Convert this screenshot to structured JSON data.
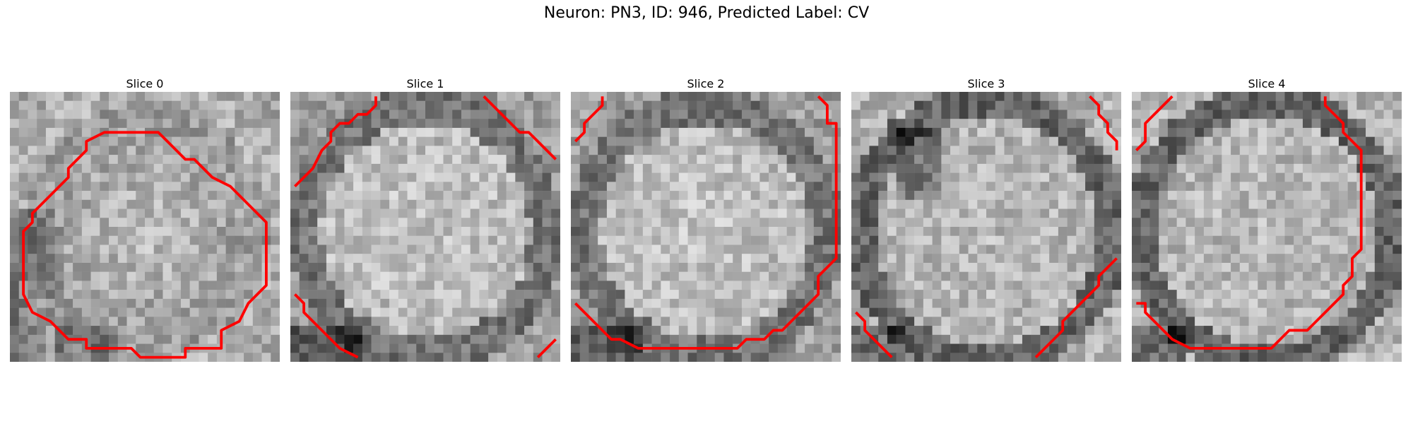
{
  "figure": {
    "suptitle": "Neuron: PN3, ID: 946, Predicted Label: CV"
  },
  "contour_color": "#ff0000",
  "grid_size": 30,
  "slices": [
    {
      "title": "Slice 0",
      "tone": "rim-dark-left-bottom",
      "contours": [
        [
          [
            13,
            4
          ],
          [
            16,
            4
          ],
          [
            17,
            5
          ],
          [
            19,
            7
          ],
          [
            20,
            7
          ],
          [
            22,
            9
          ],
          [
            24,
            10
          ],
          [
            26,
            12
          ],
          [
            28,
            14
          ],
          [
            28,
            21
          ],
          [
            26,
            23
          ],
          [
            25,
            25
          ],
          [
            23,
            26
          ],
          [
            23,
            28
          ],
          [
            19,
            28
          ],
          [
            19,
            28
          ],
          [
            19,
            29
          ],
          [
            17,
            29
          ],
          [
            14,
            29
          ],
          [
            13,
            28
          ],
          [
            10,
            28
          ],
          [
            8,
            28
          ],
          [
            8,
            27
          ],
          [
            6,
            27
          ],
          [
            5,
            26
          ],
          [
            4,
            25
          ],
          [
            2,
            24
          ],
          [
            1,
            22
          ],
          [
            1,
            15
          ],
          [
            2,
            14
          ],
          [
            2,
            13
          ],
          [
            4,
            11
          ],
          [
            6,
            9
          ],
          [
            6,
            8
          ],
          [
            8,
            6
          ],
          [
            8,
            5
          ],
          [
            10,
            4
          ],
          [
            13,
            4
          ]
        ]
      ]
    },
    {
      "title": "Slice 1",
      "tone": "bright-center",
      "contours": [
        [
          [
            0,
            10
          ],
          [
            1,
            9
          ],
          [
            2,
            8
          ],
          [
            3,
            6
          ],
          [
            4,
            5
          ],
          [
            4,
            4
          ],
          [
            5,
            3
          ],
          [
            6,
            3
          ],
          [
            7,
            2
          ],
          [
            8,
            2
          ],
          [
            9,
            1
          ],
          [
            9,
            0
          ]
        ],
        [
          [
            21,
            0
          ],
          [
            22,
            1
          ],
          [
            24,
            3
          ],
          [
            25,
            4
          ],
          [
            26,
            4
          ],
          [
            27,
            5
          ],
          [
            28,
            6
          ],
          [
            29,
            7
          ]
        ],
        [
          [
            0,
            22
          ],
          [
            1,
            23
          ],
          [
            1,
            24
          ],
          [
            3,
            26
          ],
          [
            4,
            27
          ],
          [
            5,
            28
          ],
          [
            7,
            29
          ]
        ],
        [
          [
            27,
            29
          ],
          [
            29,
            27
          ]
        ]
      ]
    },
    {
      "title": "Slice 2",
      "tone": "bright-center",
      "contours": [
        [
          [
            0,
            5
          ],
          [
            1,
            4
          ],
          [
            1,
            3
          ],
          [
            2,
            2
          ],
          [
            3,
            1
          ],
          [
            3,
            0
          ]
        ],
        [
          [
            27,
            0
          ],
          [
            28,
            1
          ],
          [
            28,
            3
          ],
          [
            29,
            3
          ],
          [
            29,
            16
          ],
          [
            29,
            18
          ],
          [
            28,
            19
          ],
          [
            27,
            20
          ],
          [
            27,
            22
          ],
          [
            26,
            23
          ],
          [
            25,
            24
          ],
          [
            24,
            25
          ],
          [
            23,
            26
          ],
          [
            22,
            26
          ],
          [
            21,
            27
          ],
          [
            19,
            27
          ],
          [
            18,
            28
          ],
          [
            7,
            28
          ],
          [
            5,
            27
          ],
          [
            4,
            27
          ],
          [
            3,
            26
          ],
          [
            2,
            25
          ],
          [
            0,
            23
          ]
        ]
      ]
    },
    {
      "title": "Slice 3",
      "tone": "dark-ring",
      "contours": [
        [
          [
            26,
            0
          ],
          [
            27,
            1
          ],
          [
            27,
            2
          ],
          [
            28,
            3
          ],
          [
            28,
            4
          ],
          [
            29,
            5
          ],
          [
            29,
            6
          ]
        ],
        [
          [
            29,
            18
          ],
          [
            28,
            19
          ],
          [
            27,
            20
          ],
          [
            27,
            21
          ],
          [
            26,
            22
          ],
          [
            25,
            23
          ],
          [
            24,
            24
          ],
          [
            23,
            25
          ],
          [
            23,
            26
          ],
          [
            22,
            27
          ],
          [
            21,
            28
          ],
          [
            20,
            29
          ]
        ],
        [
          [
            0,
            24
          ],
          [
            1,
            25
          ],
          [
            1,
            26
          ],
          [
            2,
            27
          ],
          [
            3,
            28
          ],
          [
            4,
            29
          ]
        ]
      ]
    },
    {
      "title": "Slice 4",
      "tone": "dark-ring",
      "contours": [
        [
          [
            4,
            0
          ],
          [
            3,
            1
          ],
          [
            2,
            2
          ],
          [
            1,
            3
          ],
          [
            1,
            5
          ],
          [
            0,
            6
          ]
        ],
        [
          [
            21,
            0
          ],
          [
            21,
            1
          ],
          [
            22,
            2
          ],
          [
            23,
            3
          ],
          [
            23,
            4
          ],
          [
            24,
            5
          ],
          [
            25,
            6
          ],
          [
            25,
            8
          ],
          [
            25,
            10
          ],
          [
            25,
            16
          ],
          [
            25,
            17
          ],
          [
            24,
            18
          ],
          [
            24,
            20
          ],
          [
            23,
            21
          ],
          [
            23,
            22
          ],
          [
            22,
            23
          ],
          [
            21,
            24
          ],
          [
            20,
            25
          ],
          [
            19,
            26
          ],
          [
            17,
            26
          ],
          [
            16,
            27
          ],
          [
            15,
            28
          ],
          [
            6,
            28
          ],
          [
            4,
            27
          ],
          [
            3,
            26
          ],
          [
            2,
            25
          ],
          [
            1,
            24
          ],
          [
            1,
            23
          ],
          [
            0,
            23
          ]
        ]
      ]
    }
  ]
}
